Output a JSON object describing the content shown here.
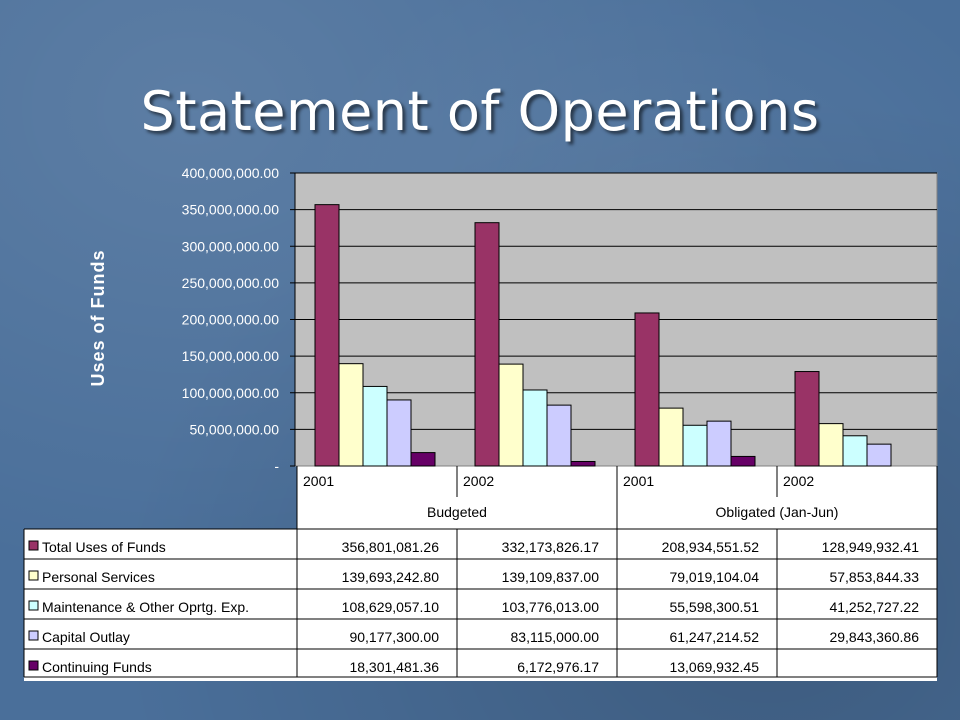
{
  "slide": {
    "title": "Statement of Operations"
  },
  "colors": {
    "background": "#4a6f9a",
    "plot_area": "#c0c0c0"
  },
  "chart_data": {
    "type": "bar",
    "ylabel": "Uses of Funds",
    "ylim": [
      0,
      400000000
    ],
    "ytick_values": [
      0,
      50000000,
      100000000,
      150000000,
      200000000,
      250000000,
      300000000,
      350000000,
      400000000
    ],
    "ytick_labels": [
      "-",
      "50,000,000.00",
      "100,000,000.00",
      "150,000,000.00",
      "200,000,000.00",
      "250,000,000.00",
      "300,000,000.00",
      "350,000,000.00",
      "400,000,000.00"
    ],
    "grid": true,
    "legend": "data-table-left",
    "groups": [
      "Budgeted",
      "Obligated (Jan-Jun)"
    ],
    "categories": [
      "2001",
      "2002",
      "2001",
      "2002"
    ],
    "series": [
      {
        "name": "Total Uses of Funds",
        "color": "#993366",
        "values": [
          356801081.26,
          332173826.17,
          208934551.52,
          128949932.41
        ],
        "labels": [
          "356,801,081.26",
          "332,173,826.17",
          "208,934,551.52",
          "128,949,932.41"
        ]
      },
      {
        "name": "Personal Services",
        "color": "#ffffcc",
        "values": [
          139693242.8,
          139109837.0,
          79019104.04,
          57853844.33
        ],
        "labels": [
          "139,693,242.80",
          "139,109,837.00",
          "79,019,104.04",
          "57,853,844.33"
        ]
      },
      {
        "name": "Maintenance & Other Oprtg. Exp.",
        "color": "#ccffff",
        "values": [
          108629057.1,
          103776013.0,
          55598300.51,
          41252727.22
        ],
        "labels": [
          "108,629,057.10",
          "103,776,013.00",
          "55,598,300.51",
          "41,252,727.22"
        ]
      },
      {
        "name": "Capital Outlay",
        "color": "#ccccff",
        "values": [
          90177300.0,
          83115000.0,
          61247214.52,
          29843360.86
        ],
        "labels": [
          "90,177,300.00",
          "83,115,000.00",
          "61,247,214.52",
          "29,843,360.86"
        ]
      },
      {
        "name": "Continuing Funds",
        "color": "#660066",
        "values": [
          18301481.36,
          6172976.17,
          13069932.45,
          null
        ],
        "labels": [
          "18,301,481.36",
          "6,172,976.17",
          "13,069,932.45",
          ""
        ]
      }
    ]
  }
}
